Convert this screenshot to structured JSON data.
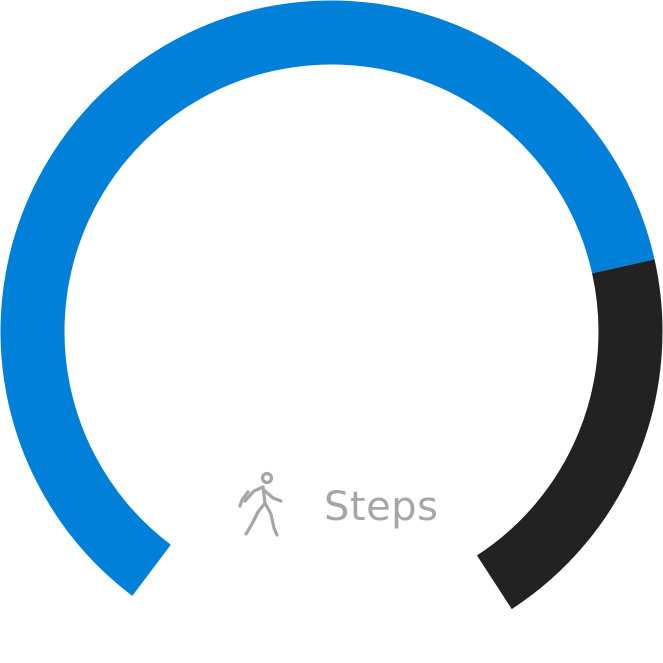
{
  "gauge": {
    "metric": "steps",
    "progress_fraction": 0.76,
    "progress_color": "#0080d8",
    "remaining_color": "#222222"
  },
  "label": {
    "text": "Steps",
    "icon": "walking-person-icon",
    "color": "#a6a6a6"
  }
}
